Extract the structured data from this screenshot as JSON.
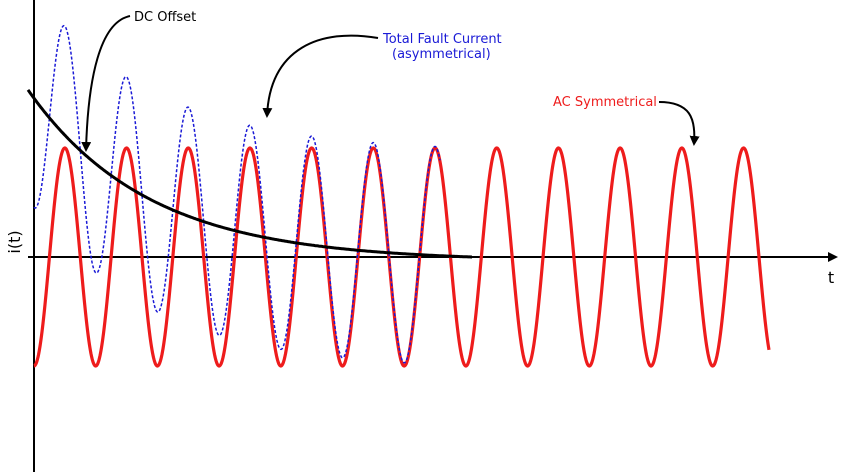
{
  "axes": {
    "y_label": "i(t)",
    "x_label": "t"
  },
  "annotations": {
    "dc_offset": "DC Offset",
    "total_fault_line1": "Total Fault Current",
    "total_fault_line2": "(asymmetrical)",
    "ac_symmetrical": "AC Symmetrical"
  },
  "colors": {
    "ac": "#ee1c1c",
    "total": "#1a1ad6",
    "dc": "#000000",
    "axis": "#000000"
  },
  "curves": [
    {
      "name": "ac-symmetrical-curve",
      "style": "solid red"
    },
    {
      "name": "total-fault-current-curve",
      "style": "dashed blue"
    },
    {
      "name": "dc-offset-curve",
      "style": "solid black"
    }
  ]
}
